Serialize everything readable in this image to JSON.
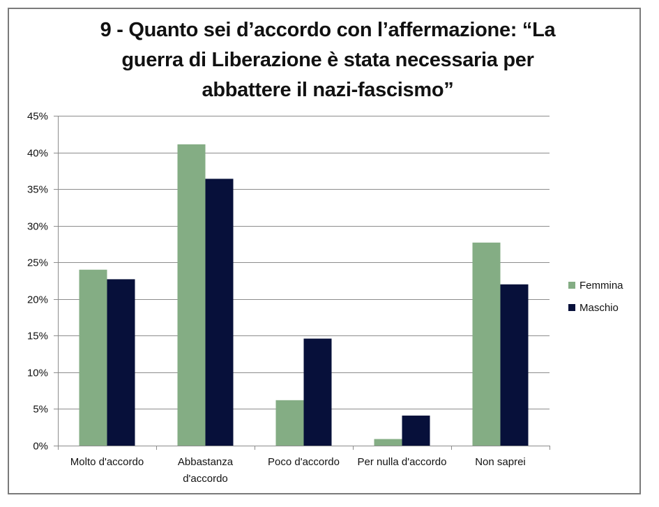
{
  "chart_data": {
    "type": "bar",
    "title": "9 - Quanto sei d’accordo con l’affermazione: “La guerra di Liberazione è stata necessaria per abbattere il nazi-fascismo”",
    "title_lines": [
      "9 - Quanto sei d’accordo con l’affermazione: “La",
      "guerra di Liberazione è stata necessaria per",
      "abbattere il nazi-fascismo”"
    ],
    "categories": [
      "Molto d'accordo",
      "Abbastanza d'accordo",
      "Poco d'accordo",
      "Per nulla d'accordo",
      "Non saprei"
    ],
    "category_lines": [
      [
        "Molto d'accordo"
      ],
      [
        "Abbastanza",
        "d'accordo"
      ],
      [
        "Poco d'accordo"
      ],
      [
        "Per nulla d'accordo"
      ],
      [
        "Non saprei"
      ]
    ],
    "series": [
      {
        "name": "Femmina",
        "color": "#84ad84",
        "values": [
          24.0,
          41.1,
          6.2,
          0.9,
          27.7
        ]
      },
      {
        "name": "Maschio",
        "color": "#07103a",
        "values": [
          22.7,
          36.4,
          14.6,
          4.1,
          22.0
        ]
      }
    ],
    "y_ticks": [
      "0%",
      "5%",
      "10%",
      "15%",
      "20%",
      "25%",
      "30%",
      "35%",
      "40%",
      "45%"
    ],
    "ylim": [
      0,
      45
    ],
    "grid": true,
    "legend_position": "right"
  }
}
